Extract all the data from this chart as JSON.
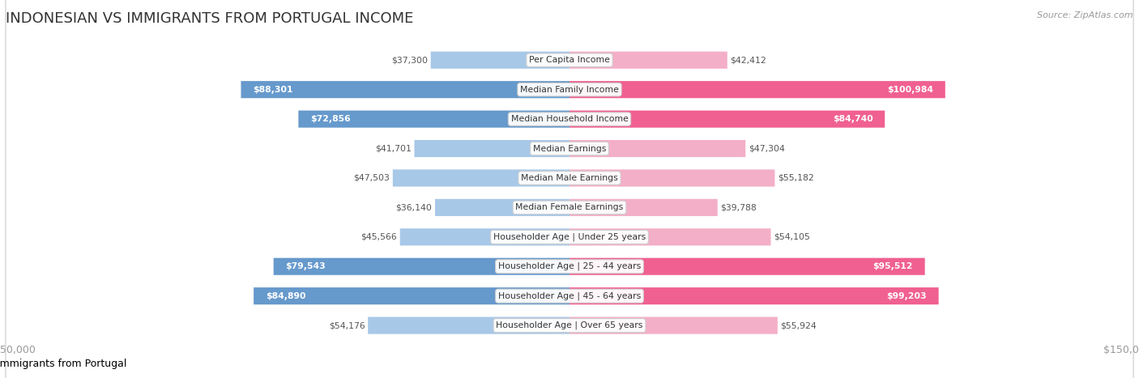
{
  "title": "INDONESIAN VS IMMIGRANTS FROM PORTUGAL INCOME",
  "source": "Source: ZipAtlas.com",
  "categories": [
    "Per Capita Income",
    "Median Family Income",
    "Median Household Income",
    "Median Earnings",
    "Median Male Earnings",
    "Median Female Earnings",
    "Householder Age | Under 25 years",
    "Householder Age | 25 - 44 years",
    "Householder Age | 45 - 64 years",
    "Householder Age | Over 65 years"
  ],
  "indonesian": [
    37300,
    88301,
    72856,
    41701,
    47503,
    36140,
    45566,
    79543,
    84890,
    54176
  ],
  "portugal": [
    42412,
    100984,
    84740,
    47304,
    55182,
    39788,
    54105,
    95512,
    99203,
    55924
  ],
  "indonesian_labels": [
    "$37,300",
    "$88,301",
    "$72,856",
    "$41,701",
    "$47,503",
    "$36,140",
    "$45,566",
    "$79,543",
    "$84,890",
    "$54,176"
  ],
  "portugal_labels": [
    "$42,412",
    "$100,984",
    "$84,740",
    "$47,304",
    "$55,182",
    "$39,788",
    "$54,105",
    "$95,512",
    "$99,203",
    "$55,924"
  ],
  "color_ind_light": "#a8c8e8",
  "color_ind_dark": "#6699cc",
  "color_por_light": "#f4afc8",
  "color_por_dark": "#f06090",
  "max_val": 150000,
  "bg_color": "#ffffff",
  "row_bg_even": "#f7f7f7",
  "row_bg_odd": "#ffffff",
  "row_border": "#dddddd",
  "text_dark": "#333333",
  "text_light": "#ffffff",
  "text_outside": "#555555",
  "axis_color": "#999999",
  "title_color": "#333333",
  "source_color": "#999999",
  "threshold_ind": 60000,
  "threshold_por": 60000,
  "cat_label_fontsize": 7.8,
  "val_label_fontsize": 7.8,
  "title_fontsize": 13,
  "source_fontsize": 8,
  "legend_fontsize": 9,
  "axis_fontsize": 9
}
